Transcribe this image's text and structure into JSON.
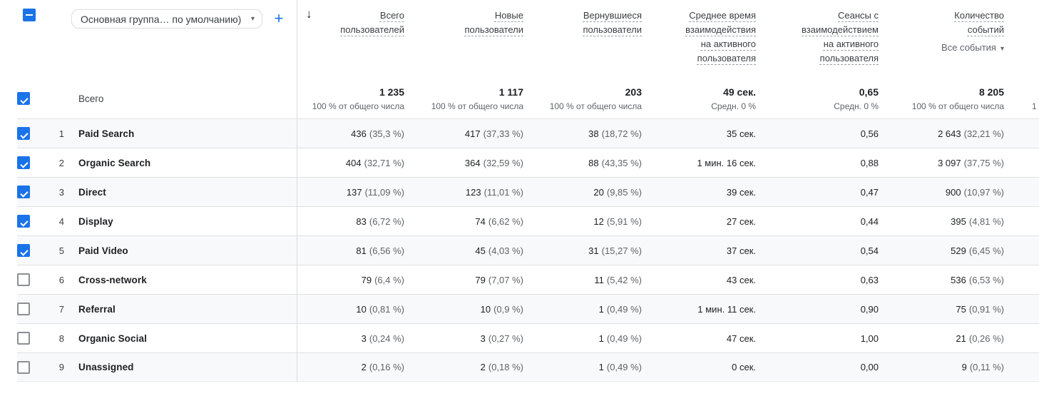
{
  "toolbar": {
    "dimension_selector": "Основная группа… по умолчанию)",
    "add_button": "+",
    "sort_icon": "↓",
    "caret": "▾"
  },
  "columns": {
    "c1": "Всего пользователей",
    "c2": "Новые пользователи",
    "c3": "Вернувшиеся пользователи",
    "c4": "Среднее время взаимодействия на активного пользователя",
    "c5": "Сеансы с взаимодействием на активного пользователя",
    "c6": "Количество событий",
    "events_filter": "Все события"
  },
  "totals": {
    "label": "Всего",
    "c1": {
      "value": "1 235",
      "sub": "100 % от общего числа"
    },
    "c2": {
      "value": "1 117",
      "sub": "100 % от общего числа"
    },
    "c3": {
      "value": "203",
      "sub": "100 % от общего числа"
    },
    "c4": {
      "value": "49 сек.",
      "sub": "Средн. 0 %"
    },
    "c5": {
      "value": "0,65",
      "sub": "Средн. 0 %"
    },
    "c6": {
      "value": "8 205",
      "sub": "100 % от общего числа"
    },
    "overflow": "1"
  },
  "rows": [
    {
      "num": "1",
      "name": "Paid Search",
      "state": "checked",
      "users": "436",
      "users_pct": "(35,3 %)",
      "new_users": "417",
      "new_users_pct": "(37,33 %)",
      "returning": "38",
      "returning_pct": "(18,72 %)",
      "avg_time": "35 сек.",
      "sessions": "0,56",
      "events": "2 643",
      "events_pct": "(32,21 %)"
    },
    {
      "num": "2",
      "name": "Organic Search",
      "state": "checked",
      "users": "404",
      "users_pct": "(32,71 %)",
      "new_users": "364",
      "new_users_pct": "(32,59 %)",
      "returning": "88",
      "returning_pct": "(43,35 %)",
      "avg_time": "1 мин. 16 сек.",
      "sessions": "0,88",
      "events": "3 097",
      "events_pct": "(37,75 %)"
    },
    {
      "num": "3",
      "name": "Direct",
      "state": "checked",
      "users": "137",
      "users_pct": "(11,09 %)",
      "new_users": "123",
      "new_users_pct": "(11,01 %)",
      "returning": "20",
      "returning_pct": "(9,85 %)",
      "avg_time": "39 сек.",
      "sessions": "0,47",
      "events": "900",
      "events_pct": "(10,97 %)"
    },
    {
      "num": "4",
      "name": "Display",
      "state": "checked",
      "users": "83",
      "users_pct": "(6,72 %)",
      "new_users": "74",
      "new_users_pct": "(6,62 %)",
      "returning": "12",
      "returning_pct": "(5,91 %)",
      "avg_time": "27 сек.",
      "sessions": "0,44",
      "events": "395",
      "events_pct": "(4,81 %)"
    },
    {
      "num": "5",
      "name": "Paid Video",
      "state": "checked",
      "users": "81",
      "users_pct": "(6,56 %)",
      "new_users": "45",
      "new_users_pct": "(4,03 %)",
      "returning": "31",
      "returning_pct": "(15,27 %)",
      "avg_time": "37 сек.",
      "sessions": "0,54",
      "events": "529",
      "events_pct": "(6,45 %)"
    },
    {
      "num": "6",
      "name": "Cross-network",
      "state": "unchecked",
      "users": "79",
      "users_pct": "(6,4 %)",
      "new_users": "79",
      "new_users_pct": "(7,07 %)",
      "returning": "11",
      "returning_pct": "(5,42 %)",
      "avg_time": "43 сек.",
      "sessions": "0,63",
      "events": "536",
      "events_pct": "(6,53 %)"
    },
    {
      "num": "7",
      "name": "Referral",
      "state": "unchecked",
      "users": "10",
      "users_pct": "(0,81 %)",
      "new_users": "10",
      "new_users_pct": "(0,9 %)",
      "returning": "1",
      "returning_pct": "(0,49 %)",
      "avg_time": "1 мин. 11 сек.",
      "sessions": "0,90",
      "events": "75",
      "events_pct": "(0,91 %)"
    },
    {
      "num": "8",
      "name": "Organic Social",
      "state": "unchecked",
      "users": "3",
      "users_pct": "(0,24 %)",
      "new_users": "3",
      "new_users_pct": "(0,27 %)",
      "returning": "1",
      "returning_pct": "(0,49 %)",
      "avg_time": "47 сек.",
      "sessions": "1,00",
      "events": "21",
      "events_pct": "(0,26 %)"
    },
    {
      "num": "9",
      "name": "Unassigned",
      "state": "unchecked",
      "users": "2",
      "users_pct": "(0,16 %)",
      "new_users": "2",
      "new_users_pct": "(0,18 %)",
      "returning": "1",
      "returning_pct": "(0,49 %)",
      "avg_time": "0 сек.",
      "sessions": "0,00",
      "events": "9",
      "events_pct": "(0,11 %)"
    }
  ]
}
